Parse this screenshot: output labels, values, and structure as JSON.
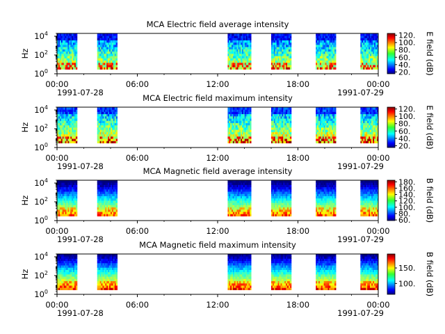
{
  "figure": {
    "date_start": "1991-07-28",
    "date_end": "1991-07-29"
  },
  "chart_data": [
    {
      "type": "heatmap",
      "title": "MCA  Electric field average intensity",
      "ylabel": "Hz",
      "x_range": [
        "1991-07-28 00:00",
        "1991-07-29 00:00"
      ],
      "x_ticks": [
        "00:00",
        "06:00",
        "12:00",
        "18:00",
        "00:00"
      ],
      "y_ticks": [
        "10^0",
        "10^2",
        "10^4"
      ],
      "y_scale": "log",
      "ylim": [
        1,
        20000
      ],
      "data_intervals_utc": [
        [
          "00:00",
          "01:30"
        ],
        [
          "03:00",
          "04:30"
        ],
        [
          "12:45",
          "14:30"
        ],
        [
          "16:00",
          "17:30"
        ],
        [
          "19:20",
          "20:50"
        ],
        [
          "22:40",
          "24:00"
        ]
      ],
      "colorbar": {
        "label": "E field (dB)",
        "ticks": [
          20,
          40,
          60,
          80,
          100,
          120
        ],
        "range": [
          15,
          125
        ],
        "colormap": "jet"
      },
      "quantity": "electric"
    },
    {
      "type": "heatmap",
      "title": "MCA  Electric field maximum intensity",
      "ylabel": "Hz",
      "x_range": [
        "1991-07-28 00:00",
        "1991-07-29 00:00"
      ],
      "x_ticks": [
        "00:00",
        "06:00",
        "12:00",
        "18:00",
        "00:00"
      ],
      "y_ticks": [
        "10^0",
        "10^2",
        "10^4"
      ],
      "y_scale": "log",
      "ylim": [
        1,
        20000
      ],
      "data_intervals_utc": [
        [
          "00:00",
          "01:30"
        ],
        [
          "03:00",
          "04:30"
        ],
        [
          "12:45",
          "14:30"
        ],
        [
          "16:00",
          "17:30"
        ],
        [
          "19:20",
          "20:50"
        ],
        [
          "22:40",
          "24:00"
        ]
      ],
      "colorbar": {
        "label": "E field (dB)",
        "ticks": [
          20,
          40,
          60,
          80,
          100,
          120
        ],
        "range": [
          15,
          125
        ],
        "colormap": "jet"
      },
      "quantity": "electric"
    },
    {
      "type": "heatmap",
      "title": "MCA  Magnetic field average intensity",
      "ylabel": "Hz",
      "x_range": [
        "1991-07-28 00:00",
        "1991-07-29 00:00"
      ],
      "x_ticks": [
        "00:00",
        "06:00",
        "12:00",
        "18:00",
        "00:00"
      ],
      "y_ticks": [
        "10^0",
        "10^2",
        "10^4"
      ],
      "y_scale": "log",
      "ylim": [
        1,
        20000
      ],
      "data_intervals_utc": [
        [
          "00:00",
          "01:30"
        ],
        [
          "03:00",
          "04:30"
        ],
        [
          "12:45",
          "14:30"
        ],
        [
          "16:00",
          "17:30"
        ],
        [
          "19:20",
          "20:50"
        ],
        [
          "22:40",
          "24:00"
        ]
      ],
      "colorbar": {
        "label": "B field (dB)",
        "ticks": [
          60,
          80,
          100,
          120,
          140,
          160,
          180
        ],
        "range": [
          58,
          185
        ],
        "colormap": "jet"
      },
      "quantity": "magnetic"
    },
    {
      "type": "heatmap",
      "title": "MCA  Magnetic field maximum intensity",
      "ylabel": "Hz",
      "x_range": [
        "1991-07-28 00:00",
        "1991-07-29 00:00"
      ],
      "x_ticks": [
        "00:00",
        "06:00",
        "12:00",
        "18:00",
        "00:00"
      ],
      "y_ticks": [
        "10^0",
        "10^2",
        "10^4"
      ],
      "y_scale": "log",
      "ylim": [
        1,
        20000
      ],
      "data_intervals_utc": [
        [
          "00:00",
          "01:30"
        ],
        [
          "03:00",
          "04:30"
        ],
        [
          "12:45",
          "14:30"
        ],
        [
          "16:00",
          "17:30"
        ],
        [
          "19:20",
          "20:50"
        ],
        [
          "22:40",
          "24:00"
        ]
      ],
      "colorbar": {
        "label": "B field (dB)",
        "ticks": [
          100,
          150
        ],
        "range": [
          65,
          195
        ],
        "colormap": "jet"
      },
      "quantity": "magnetic"
    }
  ]
}
